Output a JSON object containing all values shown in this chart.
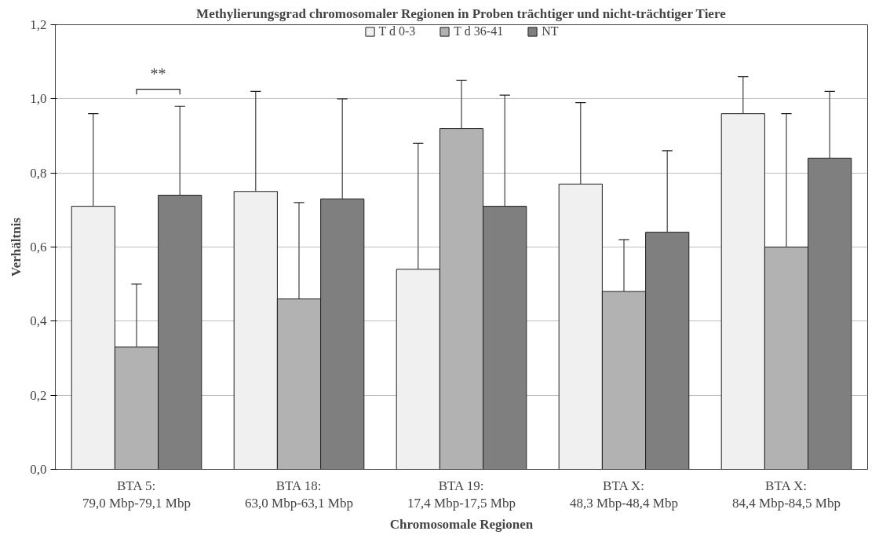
{
  "chart_data": {
    "type": "bar",
    "title": "Methylierungsgrad chromosomaler Regionen in Proben trächtiger und nicht-trächtiger Tiere",
    "xlabel": "Chromosomale Regionen",
    "ylabel": "Verhältnis",
    "categories": [
      "BTA 5:\n79,0 Mbp-79,1 Mbp",
      "BTA 18:\n63,0 Mbp-63,1 Mbp",
      "BTA 19:\n17,4 Mbp-17,5 Mbp",
      "BTA X:\n48,3 Mbp-48,4 Mbp",
      "BTA X:\n84,4 Mbp-84,5 Mbp"
    ],
    "series": [
      {
        "name": "T d 0-3",
        "color": "#f0f0f0",
        "values": [
          0.71,
          0.75,
          0.54,
          0.77,
          0.96
        ],
        "errors": [
          [
            0.71,
            0.96
          ],
          [
            0.75,
            1.02
          ],
          [
            0.54,
            0.88
          ],
          [
            0.77,
            0.99
          ],
          [
            0.96,
            1.06
          ]
        ]
      },
      {
        "name": "T d 36-41",
        "color": "#b2b2b2",
        "values": [
          0.33,
          0.46,
          0.92,
          0.48,
          0.6
        ],
        "errors": [
          [
            0.33,
            0.5
          ],
          [
            0.46,
            0.72
          ],
          [
            0.92,
            1.05
          ],
          [
            0.48,
            0.62
          ],
          [
            0.6,
            0.96
          ]
        ]
      },
      {
        "name": "NT",
        "color": "#7f7f7f",
        "values": [
          0.74,
          0.73,
          0.71,
          0.64,
          0.84
        ],
        "errors": [
          [
            0.74,
            0.98
          ],
          [
            0.73,
            1.0
          ],
          [
            0.71,
            1.01
          ],
          [
            0.64,
            0.86
          ],
          [
            0.84,
            1.02
          ]
        ]
      }
    ],
    "annotations": [
      "**"
    ],
    "ylim": [
      0,
      1.2
    ],
    "yticks": [
      {
        "value": 0,
        "label": "0,0"
      },
      {
        "value": 0.2,
        "label": "0,2"
      },
      {
        "value": 0.4,
        "label": "0,4"
      },
      {
        "value": 0.6,
        "label": "0,6"
      },
      {
        "value": 0.8,
        "label": "0,8"
      },
      {
        "value": 1.0,
        "label": "1,0"
      },
      {
        "value": 1.2,
        "label": "1,2"
      }
    ],
    "grid": "y",
    "legend": "top"
  }
}
